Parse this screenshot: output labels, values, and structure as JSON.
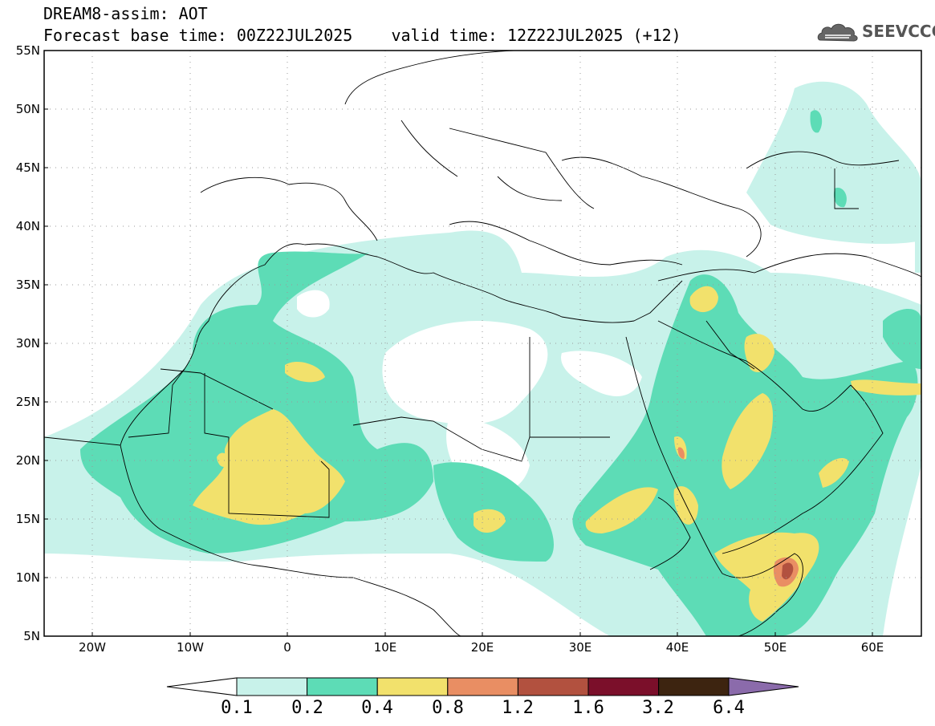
{
  "header": {
    "line1": "DREAM8-assim: AOT",
    "line2": "Forecast base time: 00Z22JUL2025    valid time: 12Z22JUL2025 (+12)"
  },
  "logo": {
    "text": "SEEVCCC",
    "icon": "cloud-logo-icon"
  },
  "map": {
    "lat_labels": [
      "55N",
      "50N",
      "45N",
      "40N",
      "35N",
      "30N",
      "25N",
      "20N",
      "15N",
      "10N",
      "5N"
    ],
    "lon_labels": [
      "20W",
      "10W",
      "0",
      "10E",
      "20E",
      "30E",
      "40E",
      "50E",
      "60E"
    ],
    "lat_range": [
      5,
      55
    ],
    "lon_range": [
      -25,
      65
    ]
  },
  "legend": {
    "levels": [
      "0.1",
      "0.2",
      "0.4",
      "0.8",
      "1.2",
      "1.6",
      "3.2",
      "6.4"
    ],
    "colors": [
      "#c8f2ea",
      "#5ddcb6",
      "#f2e16c",
      "#e98e63",
      "#b2513f",
      "#7b0f2a",
      "#3d2410",
      "#8b6bab"
    ]
  },
  "palette": {
    "very_light": "#c8f2ea",
    "light": "#5ddcb6",
    "yellow": "#f2e16c",
    "orange": "#e98e63",
    "red": "#b2513f"
  }
}
